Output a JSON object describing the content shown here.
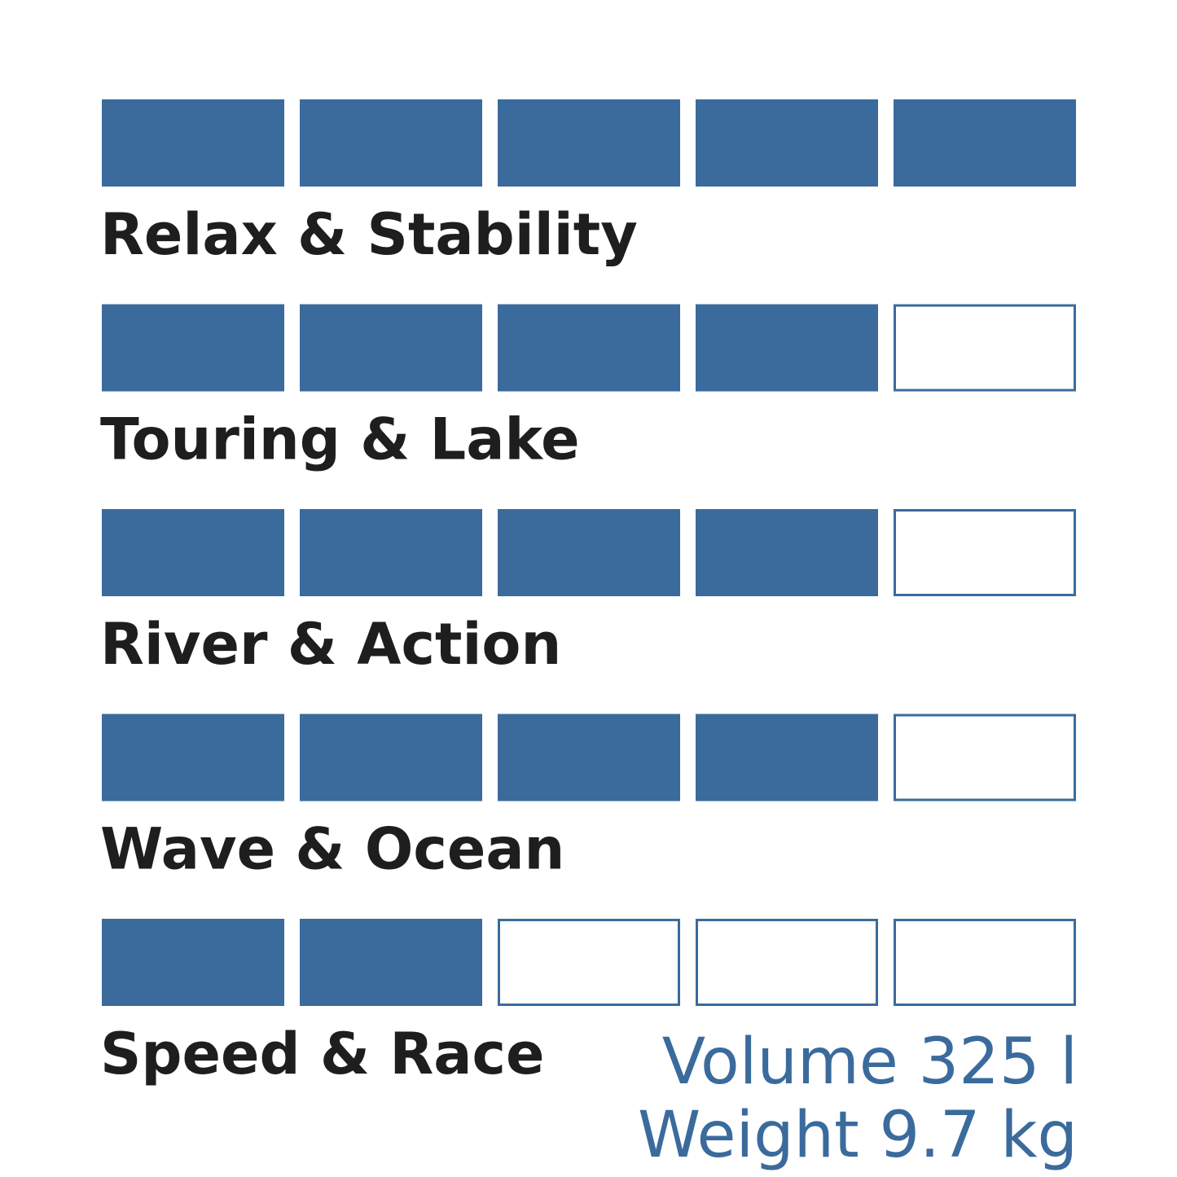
{
  "ratings": [
    {
      "label": "Relax & Stability",
      "score": 5
    },
    {
      "label": "Touring & Lake",
      "score": 4
    },
    {
      "label": "River & Action",
      "score": 4
    },
    {
      "label": "Wave & Ocean",
      "score": 4
    },
    {
      "label": "Speed & Race",
      "score": 2
    }
  ],
  "max_score": 5,
  "color": "#3a6b9c",
  "specs": [
    "Volume 325 l",
    "Weight 9.7 kg"
  ]
}
